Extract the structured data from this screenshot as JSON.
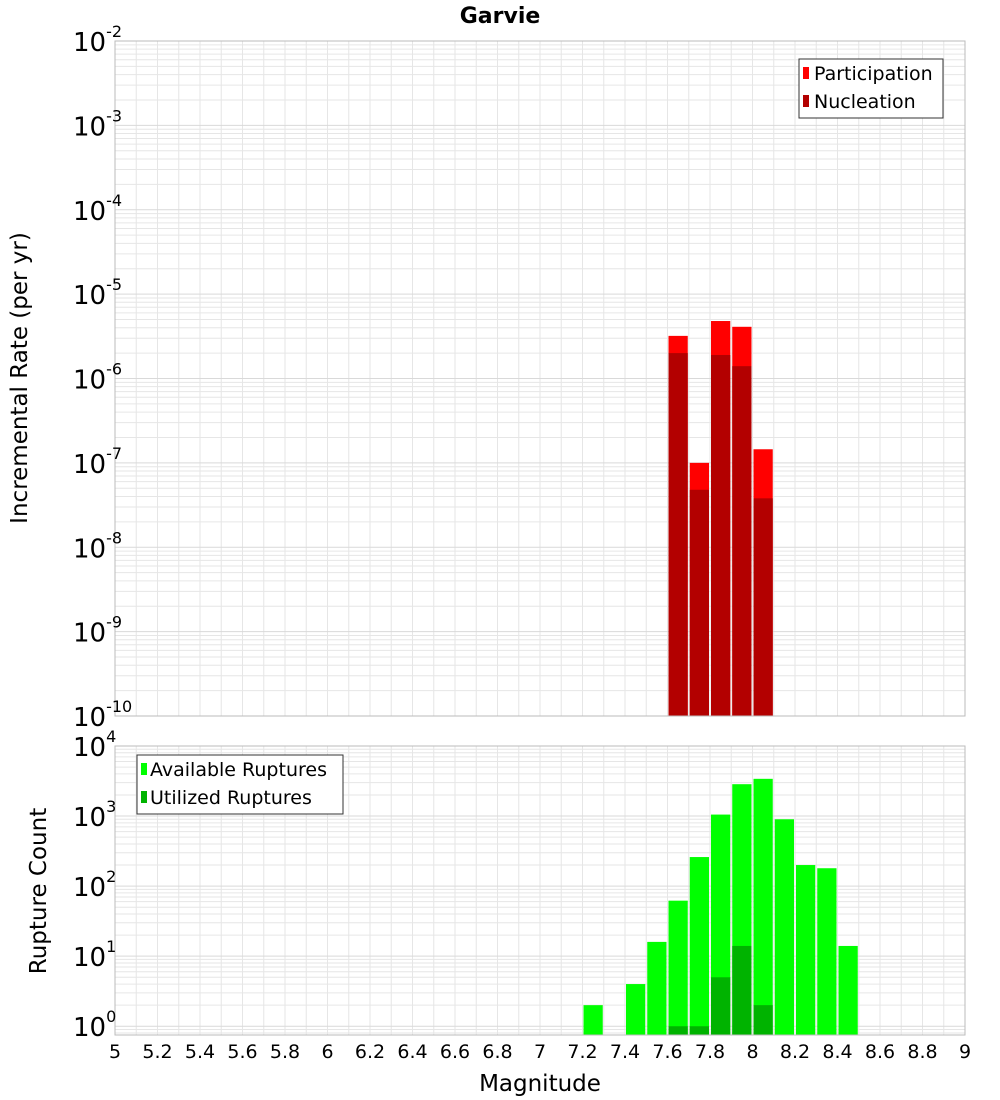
{
  "title": "Garvie",
  "colors": {
    "participation": "#ff0000",
    "nucleation": "#b30000",
    "available": "#00ff00",
    "utilized": "#00b300",
    "grid": "#e6e6e6",
    "axis": "#bbbbbb"
  },
  "chart_data": [
    {
      "type": "bar",
      "name": "rate-panel",
      "ylabel": "Incremental Rate (per yr)",
      "yscale": "log",
      "ylim": [
        1e-10,
        0.01
      ],
      "ytick_base": "10",
      "ytick_exponents": [
        "-10",
        "-9",
        "-8",
        "-7",
        "-6",
        "-5",
        "-4",
        "-3",
        "-2"
      ],
      "xlim": [
        5,
        9
      ],
      "bin_width": 0.1,
      "legend": {
        "position": "top-right",
        "entries": [
          "Participation",
          "Nucleation"
        ]
      },
      "series": [
        {
          "name": "Participation",
          "x": [
            7.65,
            7.75,
            7.85,
            7.95,
            8.05
          ],
          "values": [
            3.2e-06,
            1e-07,
            4.8e-06,
            4.1e-06,
            1.45e-07
          ]
        },
        {
          "name": "Nucleation",
          "x": [
            7.65,
            7.75,
            7.85,
            7.95,
            8.05
          ],
          "values": [
            2e-06,
            4.8e-08,
            1.9e-06,
            1.4e-06,
            3.8e-08
          ]
        }
      ]
    },
    {
      "type": "bar",
      "name": "count-panel",
      "ylabel": "Rupture Count",
      "xlabel": "Magnitude",
      "yscale": "log",
      "ylim": [
        0.75,
        10000
      ],
      "ytick_base": "10",
      "ytick_exponents": [
        "0",
        "1",
        "2",
        "3",
        "4"
      ],
      "xlim": [
        5,
        9
      ],
      "xticks": [
        "5",
        "5.2",
        "5.4",
        "5.6",
        "5.8",
        "6",
        "6.2",
        "6.4",
        "6.6",
        "6.8",
        "7",
        "7.2",
        "7.4",
        "7.6",
        "7.8",
        "8",
        "8.2",
        "8.4",
        "8.6",
        "8.8",
        "9"
      ],
      "bin_width": 0.1,
      "legend": {
        "position": "top-left",
        "entries": [
          "Available Ruptures",
          "Utilized Ruptures"
        ]
      },
      "series": [
        {
          "name": "Available Ruptures",
          "x": [
            7.25,
            7.45,
            7.55,
            7.65,
            7.75,
            7.85,
            7.95,
            8.05,
            8.15,
            8.25,
            8.35,
            8.45
          ],
          "values": [
            2,
            4,
            16,
            62,
            260,
            1050,
            2850,
            3400,
            900,
            200,
            180,
            14
          ]
        },
        {
          "name": "Utilized Ruptures",
          "x": [
            7.65,
            7.75,
            7.85,
            7.95,
            8.05
          ],
          "values": [
            1,
            1,
            5,
            14,
            2
          ]
        }
      ]
    }
  ]
}
